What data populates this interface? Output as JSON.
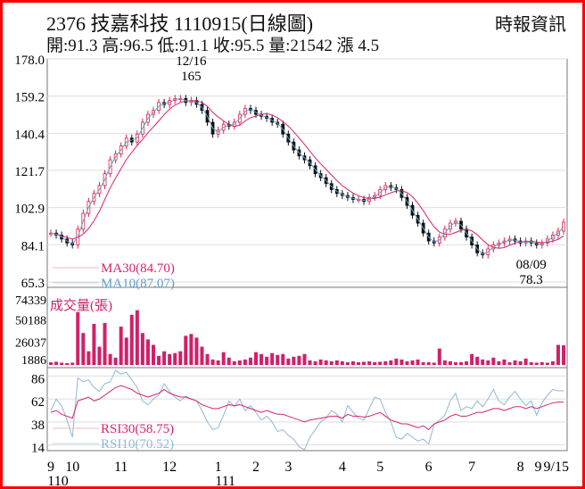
{
  "header": {
    "title": "2376  技嘉科技 1110915(日線圖)",
    "source": "時報資訊",
    "stats": "開:91.3 高:96.5 低:91.1 收:95.5 量:21542 漲 4.5"
  },
  "chart_data": {
    "type": "candlestick",
    "title": "2376 技嘉科技 1110915(日線圖)",
    "price_axis": {
      "ticks": [
        178.0,
        159.2,
        140.4,
        121.7,
        102.9,
        84.1,
        65.3
      ],
      "range": [
        65.3,
        178.0
      ]
    },
    "volume_axis": {
      "label": "成交量(張)",
      "ticks": [
        74339,
        50188,
        26037,
        1886
      ],
      "range": [
        0,
        74339
      ]
    },
    "rsi_axis": {
      "ticks": [
        86,
        62,
        38,
        14
      ],
      "range": [
        8,
        92
      ]
    },
    "x_ticks": [
      {
        "w": 0,
        "label": "9"
      },
      {
        "w": 4,
        "label": "10"
      },
      {
        "w": 13,
        "label": "11"
      },
      {
        "w": 22,
        "label": "12"
      },
      {
        "w": 31,
        "label": "1"
      },
      {
        "w": 38,
        "label": "2"
      },
      {
        "w": 44,
        "label": "3"
      },
      {
        "w": 54,
        "label": "4"
      },
      {
        "w": 61,
        "label": "5"
      },
      {
        "w": 70,
        "label": "6"
      },
      {
        "w": 78,
        "label": "7"
      },
      {
        "w": 87,
        "label": "8"
      },
      {
        "w": 96,
        "label": "9"
      }
    ],
    "x_last": "9/15",
    "year_labels": [
      {
        "w": 0,
        "label": "110"
      },
      {
        "w": 31,
        "label": "111"
      }
    ],
    "annotations": [
      {
        "w": 26,
        "price": 165,
        "date": "12/16",
        "value": "165"
      },
      {
        "w": 89,
        "price": 78.3,
        "date": "08/09",
        "value": "78.3"
      }
    ],
    "legend": {
      "ma30": "MA30(84.70)",
      "ma10": "MA10(87.07)",
      "rsi30": "RSI30(58.75)",
      "rsi10": "RSI10(70.52)"
    },
    "colors": {
      "up": "#e8204a",
      "down": "#111111",
      "ma30": "#d6246a",
      "ma10": "#5fa0c8",
      "volume": "#d0206a",
      "rsi30": "#d6246a",
      "rsi10": "#8fb8d8"
    },
    "close": [
      90,
      89,
      87,
      85,
      84,
      92,
      100,
      106,
      110,
      114,
      120,
      127,
      130,
      134,
      138,
      136,
      140,
      146,
      150,
      152,
      156,
      155,
      157,
      158,
      158,
      156,
      157,
      155,
      152,
      146,
      140,
      142,
      145,
      144,
      146,
      150,
      153,
      152,
      150,
      149,
      148,
      146,
      145,
      140,
      136,
      132,
      129,
      127,
      124,
      120,
      118,
      115,
      112,
      110,
      109,
      108,
      107,
      107,
      106,
      108,
      109,
      112,
      114,
      113,
      112,
      108,
      104,
      99,
      95,
      90,
      86,
      85,
      88,
      92,
      95,
      96,
      92,
      88,
      84,
      80,
      79,
      82,
      84,
      85,
      86,
      87,
      86,
      85,
      86,
      85,
      84,
      85,
      87,
      89,
      91,
      95.5
    ],
    "volume": [
      3000,
      3500,
      2500,
      2000,
      2500,
      58000,
      35000,
      15000,
      45000,
      20000,
      46000,
      12000,
      8000,
      42000,
      30000,
      55000,
      60000,
      35000,
      28000,
      22000,
      10000,
      15000,
      12000,
      13000,
      15000,
      32000,
      34000,
      30000,
      20000,
      12000,
      6000,
      5000,
      14000,
      8000,
      4000,
      5000,
      6000,
      8000,
      14000,
      12000,
      9000,
      13000,
      11000,
      12000,
      7000,
      9000,
      10000,
      12000,
      5000,
      4000,
      6000,
      5000,
      4000,
      5000,
      4000,
      3000,
      4000,
      3000,
      3500,
      4000,
      3000,
      3500,
      4000,
      5000,
      7000,
      6000,
      4000,
      5000,
      6000,
      3000,
      3000,
      2500,
      18000,
      5000,
      4000,
      3000,
      3000,
      4000,
      12000,
      9000,
      6000,
      5000,
      8000,
      4000,
      6000,
      3000,
      5000,
      4000,
      7000,
      3000,
      2500,
      3000,
      2500,
      4000,
      22000,
      21542
    ],
    "rsi10": [
      50,
      62,
      55,
      40,
      22,
      84,
      80,
      82,
      74,
      70,
      78,
      80,
      92,
      88,
      90,
      82,
      74,
      60,
      56,
      62,
      66,
      78,
      70,
      64,
      60,
      65,
      62,
      60,
      50,
      38,
      30,
      32,
      45,
      60,
      54,
      62,
      50,
      55,
      48,
      40,
      44,
      38,
      28,
      30,
      24,
      20,
      12,
      9,
      22,
      30,
      38,
      42,
      50,
      46,
      38,
      55,
      48,
      42,
      40,
      52,
      64,
      62,
      48,
      38,
      22,
      20,
      26,
      22,
      18,
      20,
      15,
      35,
      40,
      45,
      60,
      68,
      50,
      54,
      52,
      60,
      54,
      62,
      72,
      60,
      56,
      64,
      70,
      62,
      55,
      60,
      45,
      58,
      66,
      72,
      70.52,
      70.52
    ],
    "rsi30": [
      48,
      50,
      46,
      44,
      42,
      60,
      62,
      64,
      60,
      62,
      66,
      70,
      74,
      76,
      74,
      72,
      68,
      66,
      64,
      66,
      68,
      72,
      68,
      66,
      64,
      64,
      62,
      60,
      56,
      54,
      52,
      52,
      54,
      56,
      55,
      56,
      54,
      52,
      50,
      48,
      50,
      48,
      46,
      46,
      44,
      42,
      40,
      38,
      40,
      41,
      42,
      43,
      44,
      44,
      42,
      46,
      44,
      44,
      43,
      44,
      46,
      48,
      44,
      40,
      38,
      36,
      36,
      34,
      32,
      34,
      30,
      36,
      38,
      40,
      44,
      46,
      44,
      44,
      46,
      48,
      48,
      50,
      52,
      52,
      50,
      52,
      54,
      54,
      52,
      54,
      52,
      54,
      56,
      58,
      58.75,
      58.75
    ]
  }
}
